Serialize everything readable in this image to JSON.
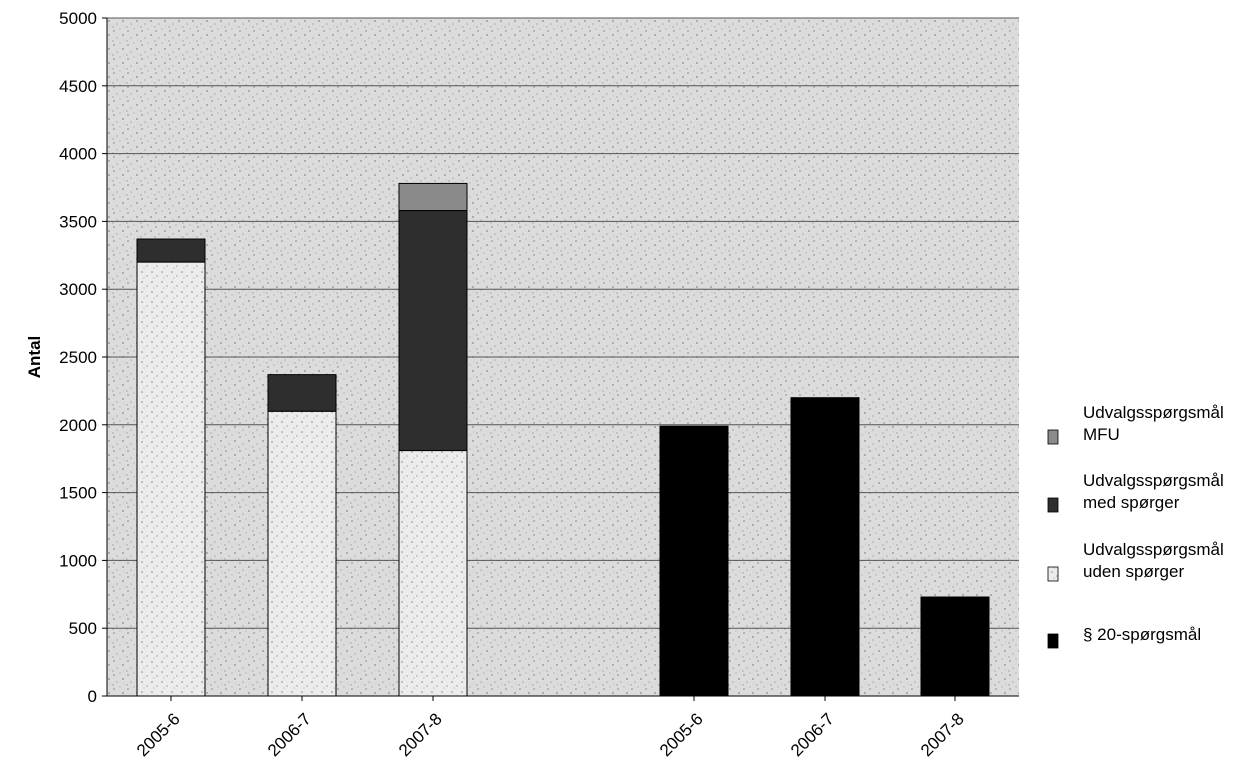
{
  "chart_data": {
    "type": "bar",
    "title": "",
    "ylabel": "Antal",
    "ylim": [
      0,
      5000
    ],
    "yticks": [
      0,
      500,
      1000,
      1500,
      2000,
      2500,
      3000,
      3500,
      4000,
      4500,
      5000
    ],
    "grid": true,
    "stacked_group": {
      "categories": [
        "2005-6",
        "2006-7",
        "2007-8"
      ],
      "series": [
        {
          "name": "Udvalgsspørgsmål uden spørger",
          "color": "#e8e8e8",
          "values": [
            3200,
            2100,
            1810
          ]
        },
        {
          "name": "Udvalgsspørgsmål med spørger",
          "color": "#2e2e2e",
          "values": [
            170,
            270,
            1770
          ]
        },
        {
          "name": "Udvalgsspørgsmål MFU",
          "color": "#8a8a8a",
          "values": [
            0,
            0,
            200
          ]
        }
      ]
    },
    "single_group": {
      "categories": [
        "2005-6",
        "2006-7",
        "2007-8"
      ],
      "series": [
        {
          "name": "§ 20-spørgsmål",
          "color": "#000000",
          "values": [
            1990,
            2200,
            730
          ]
        }
      ]
    },
    "legend": {
      "placement": "right",
      "entries": [
        {
          "lines": [
            "Udvalgsspørgsmål",
            "MFU"
          ],
          "color": "#8a8a8a"
        },
        {
          "lines": [
            "Udvalgsspørgsmål",
            "med spørger"
          ],
          "color": "#2e2e2e"
        },
        {
          "lines": [
            "Udvalgsspørgsmål",
            "uden spørger"
          ],
          "color": "#e8e8e8"
        },
        {
          "lines": [
            "§ 20-spørgsmål"
          ],
          "color": "#000000"
        }
      ]
    }
  }
}
